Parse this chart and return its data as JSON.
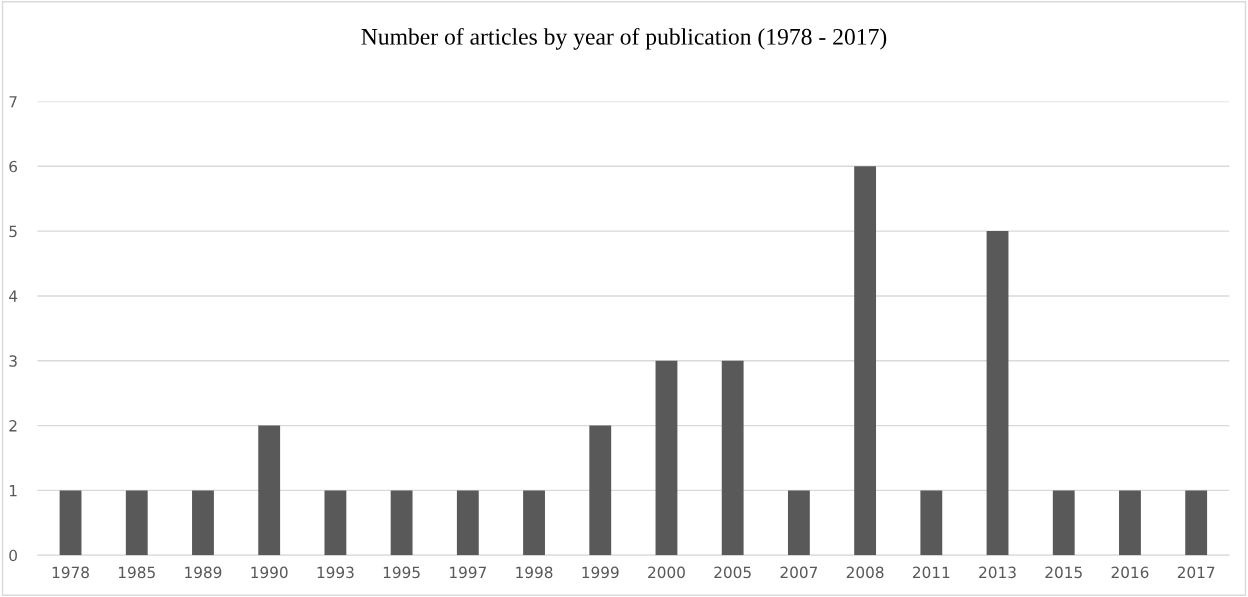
{
  "chart_data": {
    "type": "bar",
    "title": "Number of articles by year of publication (1978 - 2017)",
    "categories": [
      "1978",
      "1985",
      "1989",
      "1990",
      "1993",
      "1995",
      "1997",
      "1998",
      "1999",
      "2000",
      "2005",
      "2007",
      "2008",
      "2011",
      "2013",
      "2015",
      "2016",
      "2017"
    ],
    "values": [
      1,
      1,
      1,
      2,
      1,
      1,
      1,
      1,
      2,
      3,
      3,
      1,
      6,
      1,
      5,
      1,
      1,
      1
    ],
    "color": "#595959",
    "ylim": [
      0,
      7
    ],
    "yticks": [
      0,
      1,
      2,
      3,
      4,
      5,
      6,
      7
    ],
    "grid": "y"
  }
}
